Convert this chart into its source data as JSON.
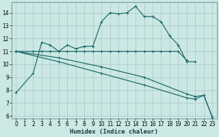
{
  "xlabel": "Humidex (Indice chaleur)",
  "bg_color": "#cce8e4",
  "grid_color": "#aaccca",
  "line_color": "#1a6b6b",
  "xlim": [
    -0.5,
    23.5
  ],
  "ylim": [
    5.8,
    14.8
  ],
  "yticks": [
    6,
    7,
    8,
    9,
    10,
    11,
    12,
    13,
    14
  ],
  "xticks": [
    0,
    1,
    2,
    3,
    4,
    5,
    6,
    7,
    8,
    9,
    10,
    11,
    12,
    13,
    14,
    15,
    16,
    17,
    18,
    19,
    20,
    21,
    22,
    23
  ],
  "line1_x": [
    0,
    2,
    3,
    4,
    5,
    6,
    7,
    8,
    9,
    10,
    11,
    12,
    13,
    14,
    15,
    16,
    17,
    18,
    19,
    20,
    21
  ],
  "line1_y": [
    7.8,
    9.3,
    11.7,
    11.5,
    11.0,
    11.5,
    11.2,
    11.4,
    11.4,
    13.3,
    14.0,
    13.9,
    14.0,
    14.5,
    13.7,
    13.7,
    13.3,
    12.2,
    11.5,
    10.2,
    10.2
  ],
  "line2_x": [
    0,
    2,
    3,
    4,
    5,
    6,
    7,
    8,
    9,
    10,
    11,
    12,
    13,
    14,
    15,
    16,
    17,
    18,
    19,
    20
  ],
  "line2_y": [
    11.0,
    11.0,
    11.0,
    11.0,
    11.0,
    11.0,
    11.0,
    11.0,
    11.0,
    11.0,
    11.0,
    11.0,
    11.0,
    11.0,
    11.0,
    11.0,
    11.0,
    11.0,
    11.0,
    10.3
  ],
  "line3_x": [
    0,
    5,
    10,
    15,
    20,
    21,
    22,
    23
  ],
  "line3_y": [
    11.0,
    10.2,
    9.3,
    8.4,
    7.4,
    7.3,
    7.6,
    5.9
  ],
  "line4_x": [
    0,
    5,
    10,
    15,
    20,
    21,
    22,
    23
  ],
  "line4_y": [
    11.0,
    10.5,
    9.8,
    9.0,
    7.7,
    7.5,
    7.6,
    5.9
  ]
}
